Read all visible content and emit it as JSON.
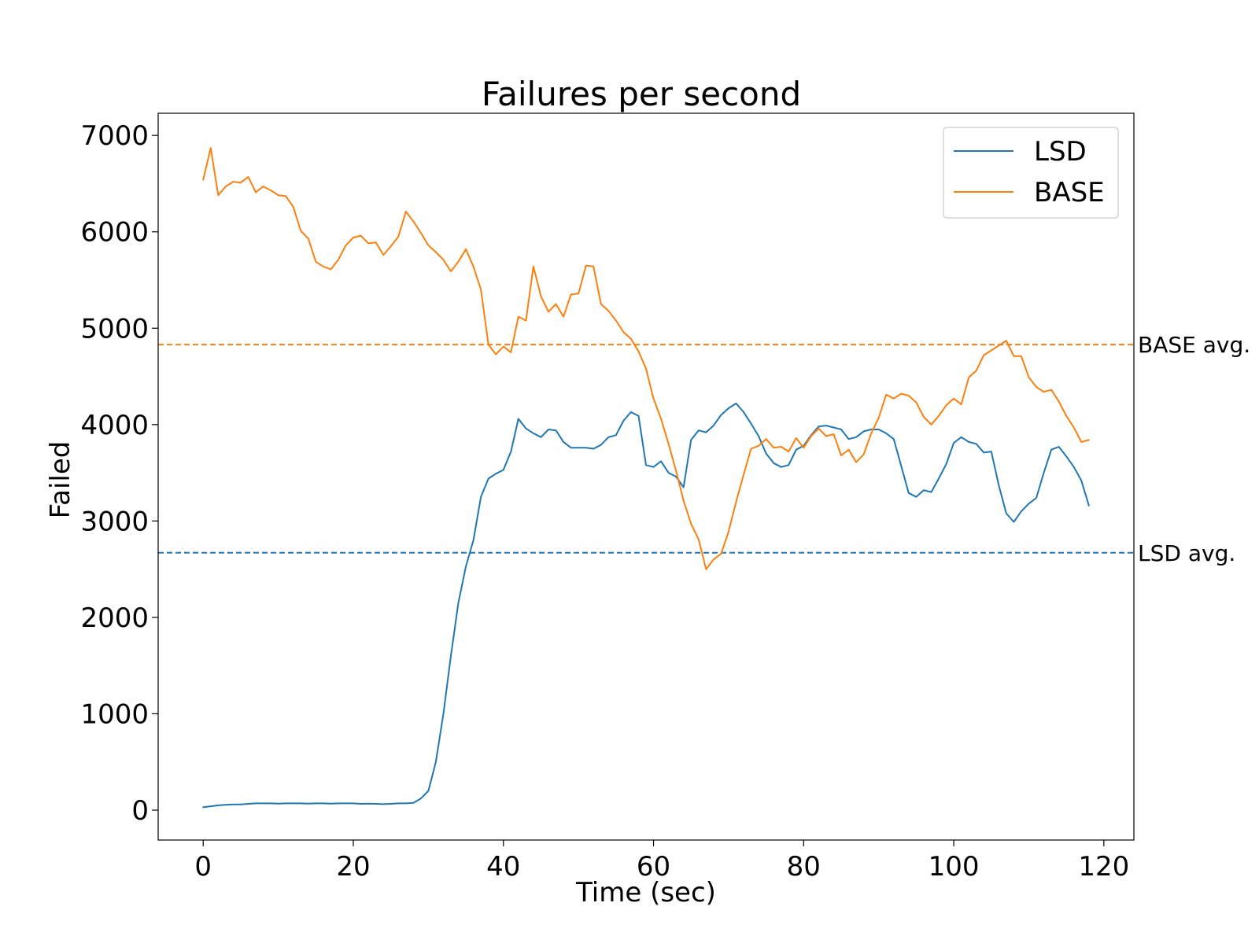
{
  "chart_data": {
    "type": "line",
    "title": "Failures per second",
    "xlabel": "Time (sec)",
    "ylabel": "Failed",
    "xlim": [
      -6,
      124
    ],
    "ylim": [
      -310,
      7230
    ],
    "xticks": [
      0,
      20,
      40,
      60,
      80,
      100,
      120
    ],
    "yticks": [
      0,
      1000,
      2000,
      3000,
      4000,
      5000,
      6000,
      7000
    ],
    "grid": false,
    "legend_position": "top-right",
    "series": [
      {
        "name": "LSD",
        "color": "#1f77b4",
        "x": [
          0,
          1,
          2,
          3,
          4,
          5,
          6,
          7,
          8,
          9,
          10,
          11,
          12,
          13,
          14,
          15,
          16,
          17,
          18,
          19,
          20,
          21,
          22,
          23,
          24,
          25,
          26,
          27,
          28,
          29,
          30,
          31,
          32,
          33,
          34,
          35,
          36,
          37,
          38,
          39,
          40,
          41,
          42,
          43,
          44,
          45,
          46,
          47,
          48,
          49,
          50,
          51,
          52,
          53,
          54,
          55,
          56,
          57,
          58,
          59,
          60,
          61,
          62,
          63,
          64,
          65,
          66,
          67,
          68,
          69,
          70,
          71,
          72,
          73,
          74,
          75,
          76,
          77,
          78,
          79,
          80,
          81,
          82,
          83,
          84,
          85,
          86,
          87,
          88,
          89,
          90,
          91,
          92,
          93,
          94,
          95,
          96,
          97,
          98,
          99,
          100,
          101,
          102,
          103,
          104,
          105,
          106,
          107,
          108,
          109,
          110,
          111,
          112,
          113,
          114,
          115,
          116,
          117,
          118
        ],
        "values": [
          30,
          40,
          50,
          55,
          60,
          60,
          65,
          70,
          70,
          70,
          68,
          70,
          70,
          70,
          68,
          70,
          70,
          68,
          70,
          70,
          70,
          65,
          68,
          65,
          62,
          65,
          70,
          70,
          75,
          120,
          200,
          500,
          1000,
          1600,
          2150,
          2530,
          2800,
          3250,
          3440,
          3490,
          3530,
          3720,
          4060,
          3960,
          3910,
          3870,
          3950,
          3940,
          3820,
          3760,
          3760,
          3760,
          3750,
          3790,
          3870,
          3890,
          4040,
          4130,
          4090,
          3580,
          3560,
          3620,
          3500,
          3460,
          3350,
          3840,
          3940,
          3920,
          3990,
          4100,
          4170,
          4220,
          4130,
          4010,
          3880,
          3700,
          3600,
          3560,
          3580,
          3740,
          3780,
          3890,
          3980,
          3990,
          3970,
          3950,
          3850,
          3870,
          3930,
          3950,
          3950,
          3910,
          3850,
          3570,
          3290,
          3250,
          3320,
          3300,
          3440,
          3590,
          3810,
          3870,
          3820,
          3800,
          3710,
          3720,
          3370,
          3080,
          2990,
          3100,
          3180,
          3240,
          3500,
          3740,
          3770,
          3670,
          3560,
          3420,
          3160
        ]
      },
      {
        "name": "BASE",
        "color": "#ff7f0e",
        "x": [
          0,
          1,
          2,
          3,
          4,
          5,
          6,
          7,
          8,
          9,
          10,
          11,
          12,
          13,
          14,
          15,
          16,
          17,
          18,
          19,
          20,
          21,
          22,
          23,
          24,
          25,
          26,
          27,
          28,
          29,
          30,
          31,
          32,
          33,
          34,
          35,
          36,
          37,
          38,
          39,
          40,
          41,
          42,
          43,
          44,
          45,
          46,
          47,
          48,
          49,
          50,
          51,
          52,
          53,
          54,
          55,
          56,
          57,
          58,
          59,
          60,
          61,
          62,
          63,
          64,
          65,
          66,
          67,
          68,
          69,
          70,
          71,
          72,
          73,
          74,
          75,
          76,
          77,
          78,
          79,
          80,
          81,
          82,
          83,
          84,
          85,
          86,
          87,
          88,
          89,
          90,
          91,
          92,
          93,
          94,
          95,
          96,
          97,
          98,
          99,
          100,
          101,
          102,
          103,
          104,
          105,
          106,
          107,
          108,
          109,
          110,
          111,
          112,
          113,
          114,
          115,
          116,
          117,
          118
        ],
        "values": [
          6540,
          6870,
          6380,
          6470,
          6520,
          6510,
          6570,
          6410,
          6470,
          6430,
          6380,
          6370,
          6260,
          6010,
          5930,
          5690,
          5640,
          5610,
          5710,
          5860,
          5940,
          5960,
          5880,
          5890,
          5760,
          5850,
          5950,
          6210,
          6110,
          5990,
          5860,
          5790,
          5710,
          5590,
          5690,
          5820,
          5640,
          5400,
          4830,
          4730,
          4810,
          4750,
          5120,
          5080,
          5640,
          5330,
          5170,
          5250,
          5120,
          5350,
          5360,
          5650,
          5640,
          5250,
          5180,
          5080,
          4960,
          4890,
          4760,
          4580,
          4270,
          4060,
          3800,
          3520,
          3210,
          2970,
          2810,
          2500,
          2600,
          2660,
          2890,
          3200,
          3480,
          3750,
          3780,
          3850,
          3760,
          3770,
          3720,
          3860,
          3760,
          3880,
          3960,
          3880,
          3900,
          3680,
          3740,
          3610,
          3690,
          3910,
          4070,
          4310,
          4270,
          4320,
          4300,
          4230,
          4080,
          4000,
          4090,
          4200,
          4270,
          4210,
          4490,
          4560,
          4720,
          4770,
          4820,
          4870,
          4710,
          4710,
          4490,
          4390,
          4340,
          4360,
          4240,
          4090,
          3970,
          3820,
          3840
        ]
      }
    ],
    "reference_lines": [
      {
        "label": "BASE avg.",
        "value": 4830,
        "color": "#ff7f0e",
        "style": "dashed"
      },
      {
        "label": "LSD avg.",
        "value": 2670,
        "color": "#1f77b4",
        "style": "dashed"
      }
    ]
  }
}
